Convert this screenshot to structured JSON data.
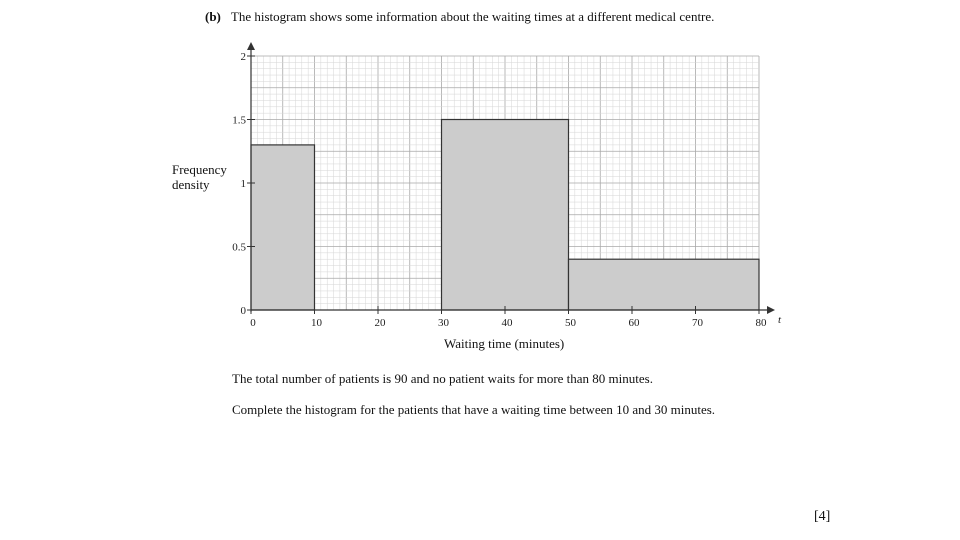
{
  "question": {
    "part": "(b)",
    "text": "The histogram shows some information about the waiting times at a different medical centre."
  },
  "chart_data": {
    "type": "histogram",
    "xlabel": "Waiting time (minutes)",
    "ylabel_lines": [
      "Frequency",
      "density"
    ],
    "x_axis_letter": "t",
    "xlim": [
      0,
      80
    ],
    "ylim": [
      0,
      2
    ],
    "x_ticks": [
      0,
      10,
      20,
      30,
      40,
      50,
      60,
      70,
      80
    ],
    "y_ticks": [
      0,
      0.5,
      1,
      1.5,
      2
    ],
    "y_tick_labels": [
      "0",
      "0.5",
      "1",
      "1.5",
      "2"
    ],
    "grid": true,
    "bars": [
      {
        "start": 0,
        "end": 10,
        "frequency_density": 1.3
      },
      {
        "start": 30,
        "end": 50,
        "frequency_density": 1.5
      },
      {
        "start": 50,
        "end": 80,
        "frequency_density": 0.4
      }
    ],
    "colors": {
      "bar_fill": "#cccccc",
      "minor_grid": "#d6d6d6",
      "major_grid": "#a8a8a8",
      "axis": "#333333"
    }
  },
  "statements": [
    "The total number of patients is 90 and no patient waits for more than 80 minutes.",
    "Complete the histogram for the patients that have a waiting time between 10 and 30 minutes."
  ],
  "marks": "[4]"
}
